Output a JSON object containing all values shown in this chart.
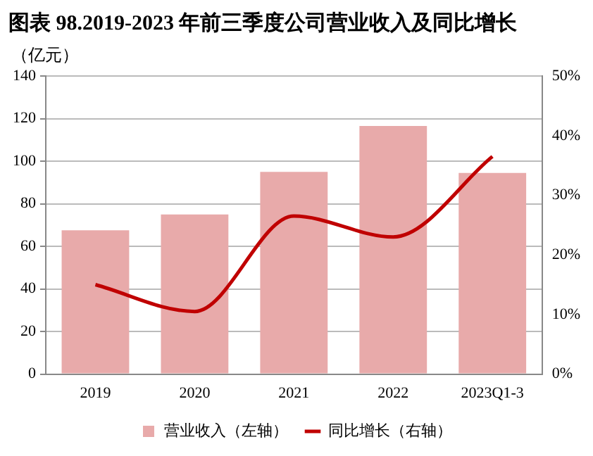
{
  "chart_data": {
    "type": "bar",
    "title": "图表 98.2019-2023 年前三季度公司营业收入及同比增长",
    "ylabel": "（亿元）",
    "categories": [
      "2019",
      "2020",
      "2021",
      "2022",
      "2023Q1-3"
    ],
    "series": [
      {
        "name": "营业收入（左轴）",
        "color": "#e8aaaa",
        "values": [
          67.5,
          75,
          95,
          116.5,
          94.5
        ]
      },
      {
        "name": "同比增长（右轴）",
        "type": "line",
        "axis": "y2",
        "color": "#c00000",
        "values": [
          15,
          10.5,
          26.5,
          23,
          36.5
        ]
      }
    ],
    "ylim": [
      0,
      140
    ],
    "yticks": [
      0,
      20,
      40,
      60,
      80,
      100,
      120,
      140
    ],
    "y2lim": [
      0,
      50
    ],
    "y2ticks": [
      {
        "value": 0,
        "label": "0%"
      },
      {
        "value": 10,
        "label": "10%"
      },
      {
        "value": 20,
        "label": "20%"
      },
      {
        "value": 30,
        "label": "30%"
      },
      {
        "value": 40,
        "label": "40%"
      },
      {
        "value": 50,
        "label": "50%"
      }
    ],
    "grid": "y",
    "legend": "bottom",
    "marker": "none",
    "line_style": "solid"
  }
}
